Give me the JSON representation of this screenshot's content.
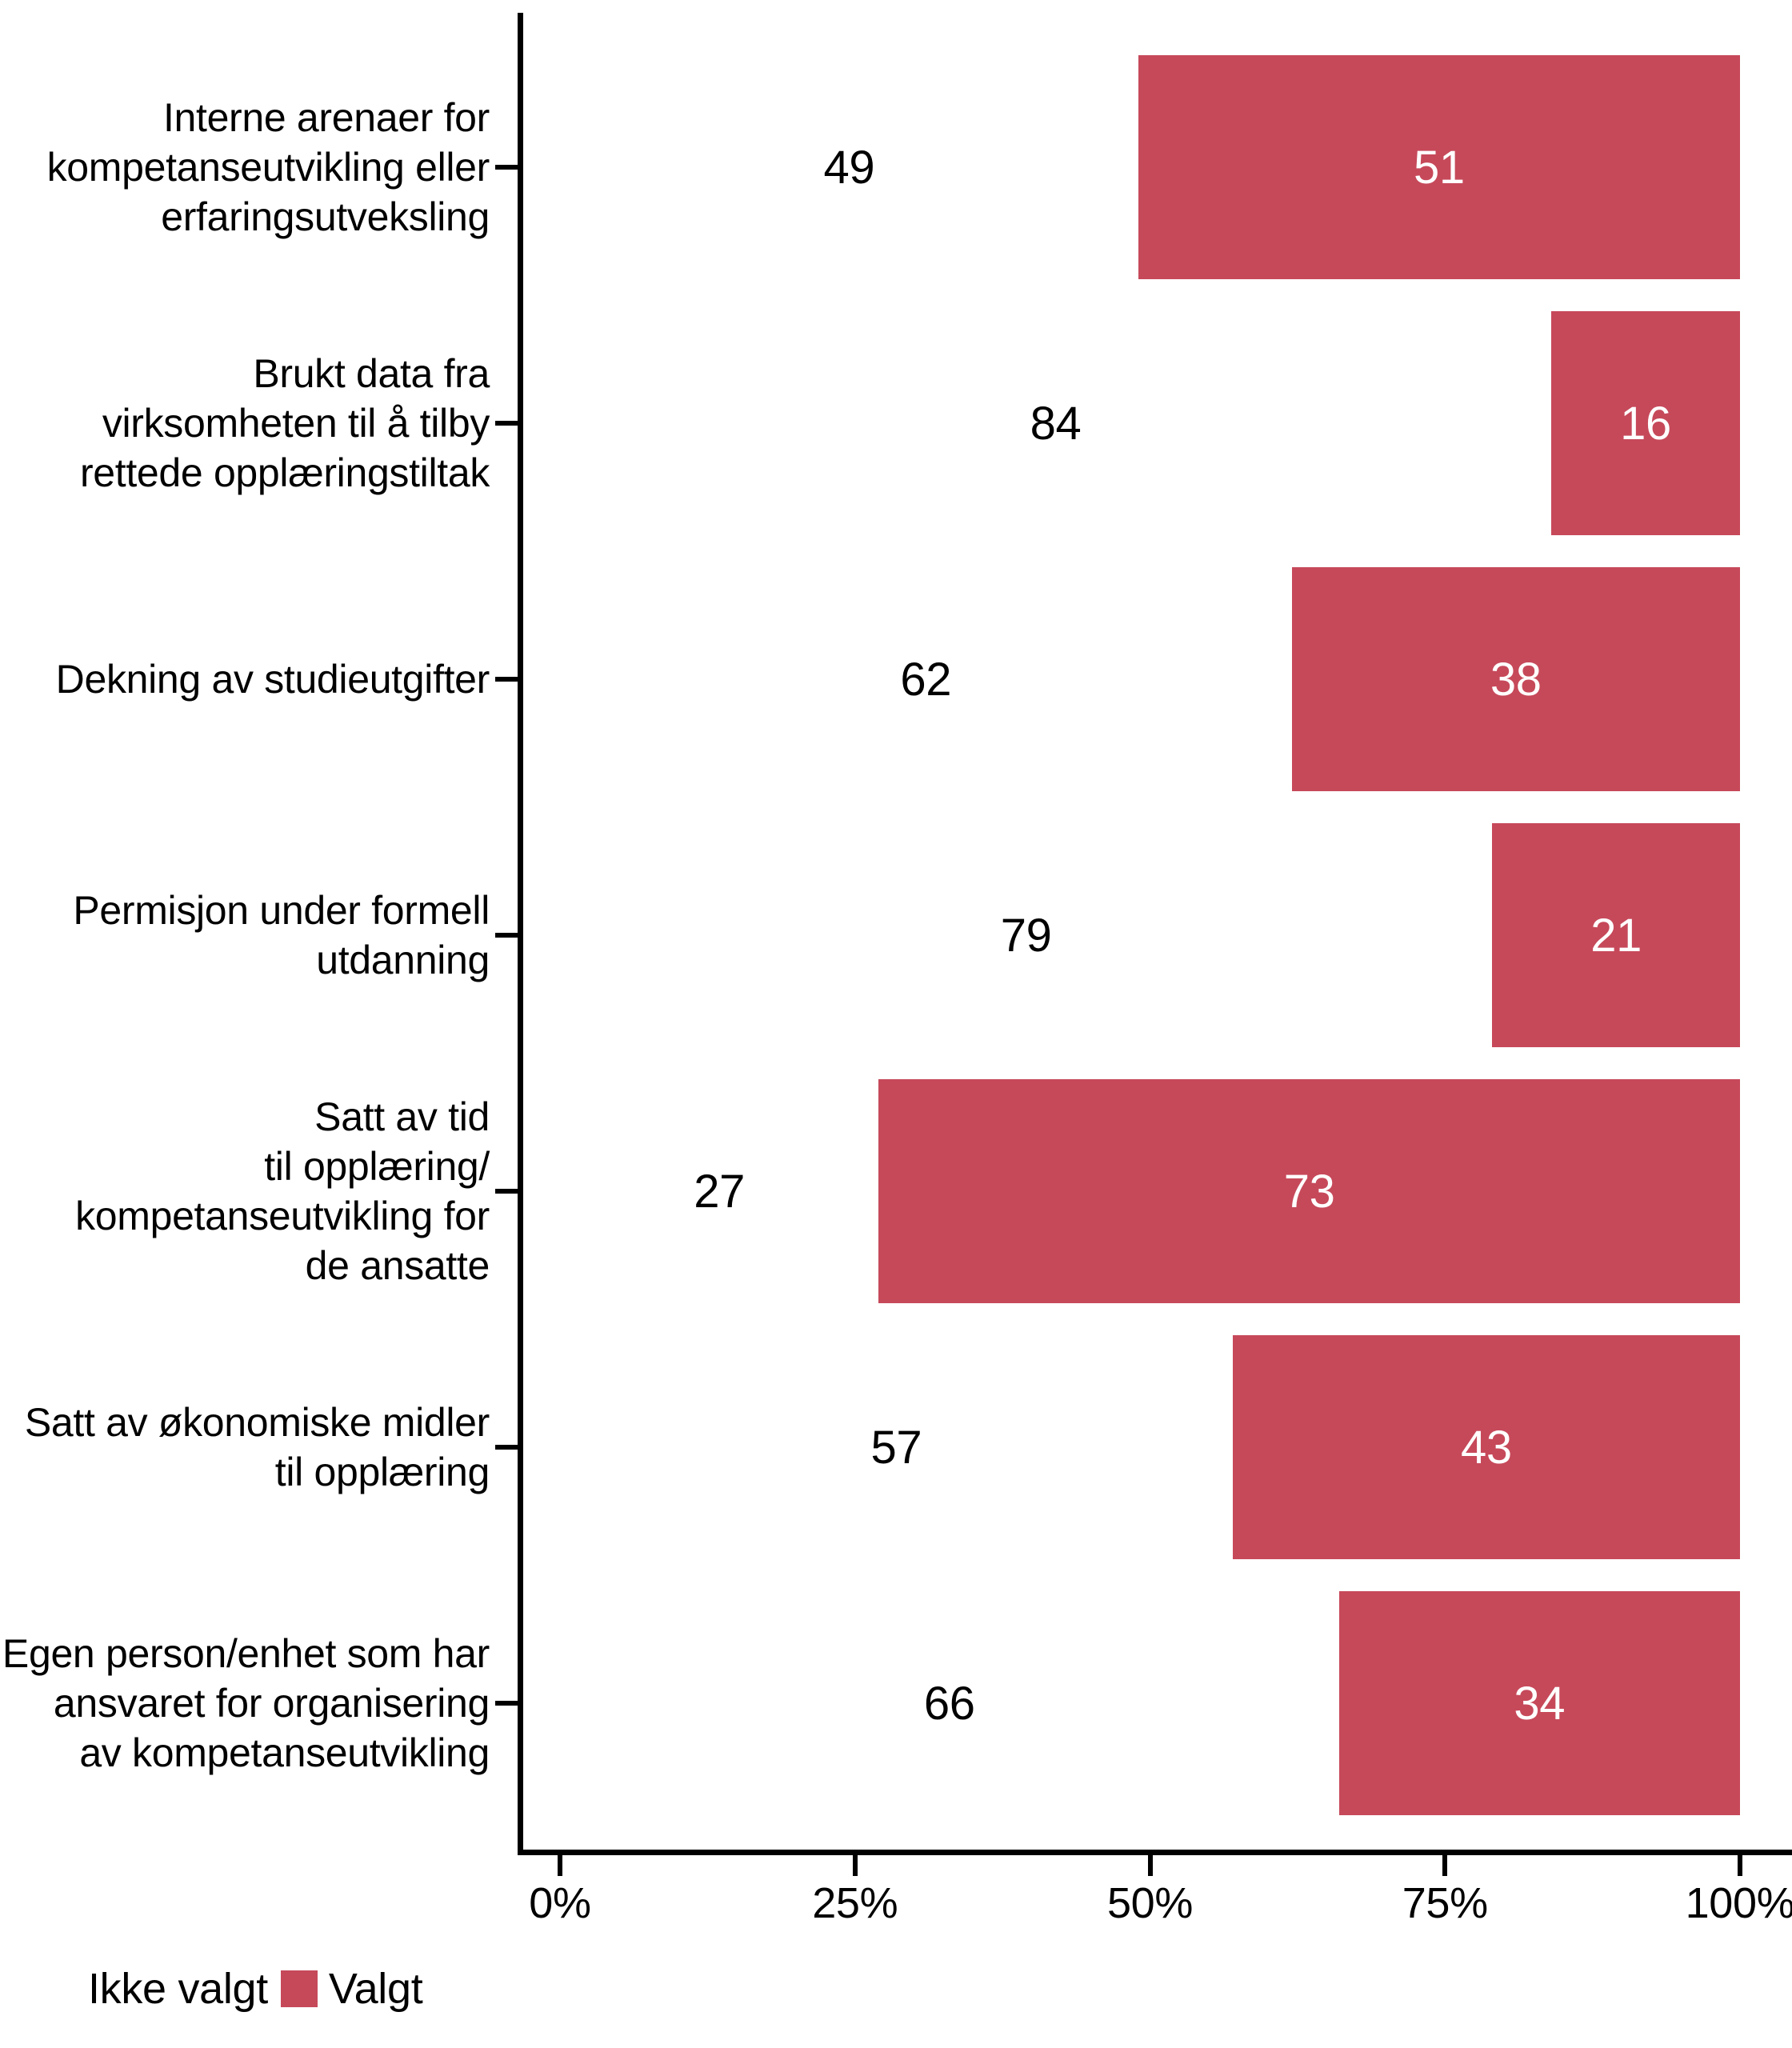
{
  "chart_data": {
    "type": "bar",
    "orientation": "horizontal",
    "stacked": true,
    "title": "",
    "xlabel": "",
    "ylabel": "",
    "categories": [
      "Interne arenaer for\nkompetanseutvikling eller\nerfaringsutveksling",
      "Brukt data fra\nvirksomheten til å tilby\nrettede opplæringstiltak",
      "Dekning av studieutgifter",
      "Permisjon under formell\nutdanning",
      "Satt av tid\ntil opplæring/\nkompetanseutvikling for\nde ansatte",
      "Satt av økonomiske midler\ntil opplæring",
      "Egen person/enhet som har\nansvaret for organisering\nav kompetanseutvikling"
    ],
    "series": [
      {
        "name": "Ikke valgt",
        "color": "#FFFFFF",
        "label_color": "#000000",
        "values": [
          49,
          84,
          62,
          79,
          27,
          57,
          66
        ]
      },
      {
        "name": "Valgt",
        "color": "#C6495A",
        "label_color": "#FFFFFF",
        "values": [
          51,
          16,
          38,
          21,
          73,
          43,
          34
        ]
      }
    ],
    "value_labels_shown": true,
    "x_axis": {
      "min": 0,
      "max": 100,
      "ticks": [
        {
          "value": 0,
          "label": "0%"
        },
        {
          "value": 25,
          "label": "25%"
        },
        {
          "value": 50,
          "label": "50%"
        },
        {
          "value": 75,
          "label": "75%"
        },
        {
          "value": 100,
          "label": "100%"
        }
      ]
    },
    "grid": false,
    "legend": {
      "position": "bottom-left",
      "items": [
        {
          "label": "Ikke valgt",
          "color": "#FFFFFF"
        },
        {
          "label": "Valgt",
          "color": "#C6495A"
        }
      ]
    }
  },
  "styles": {
    "axis_color": "#000000",
    "text_color": "#000000",
    "background": "#FFFFFF"
  }
}
